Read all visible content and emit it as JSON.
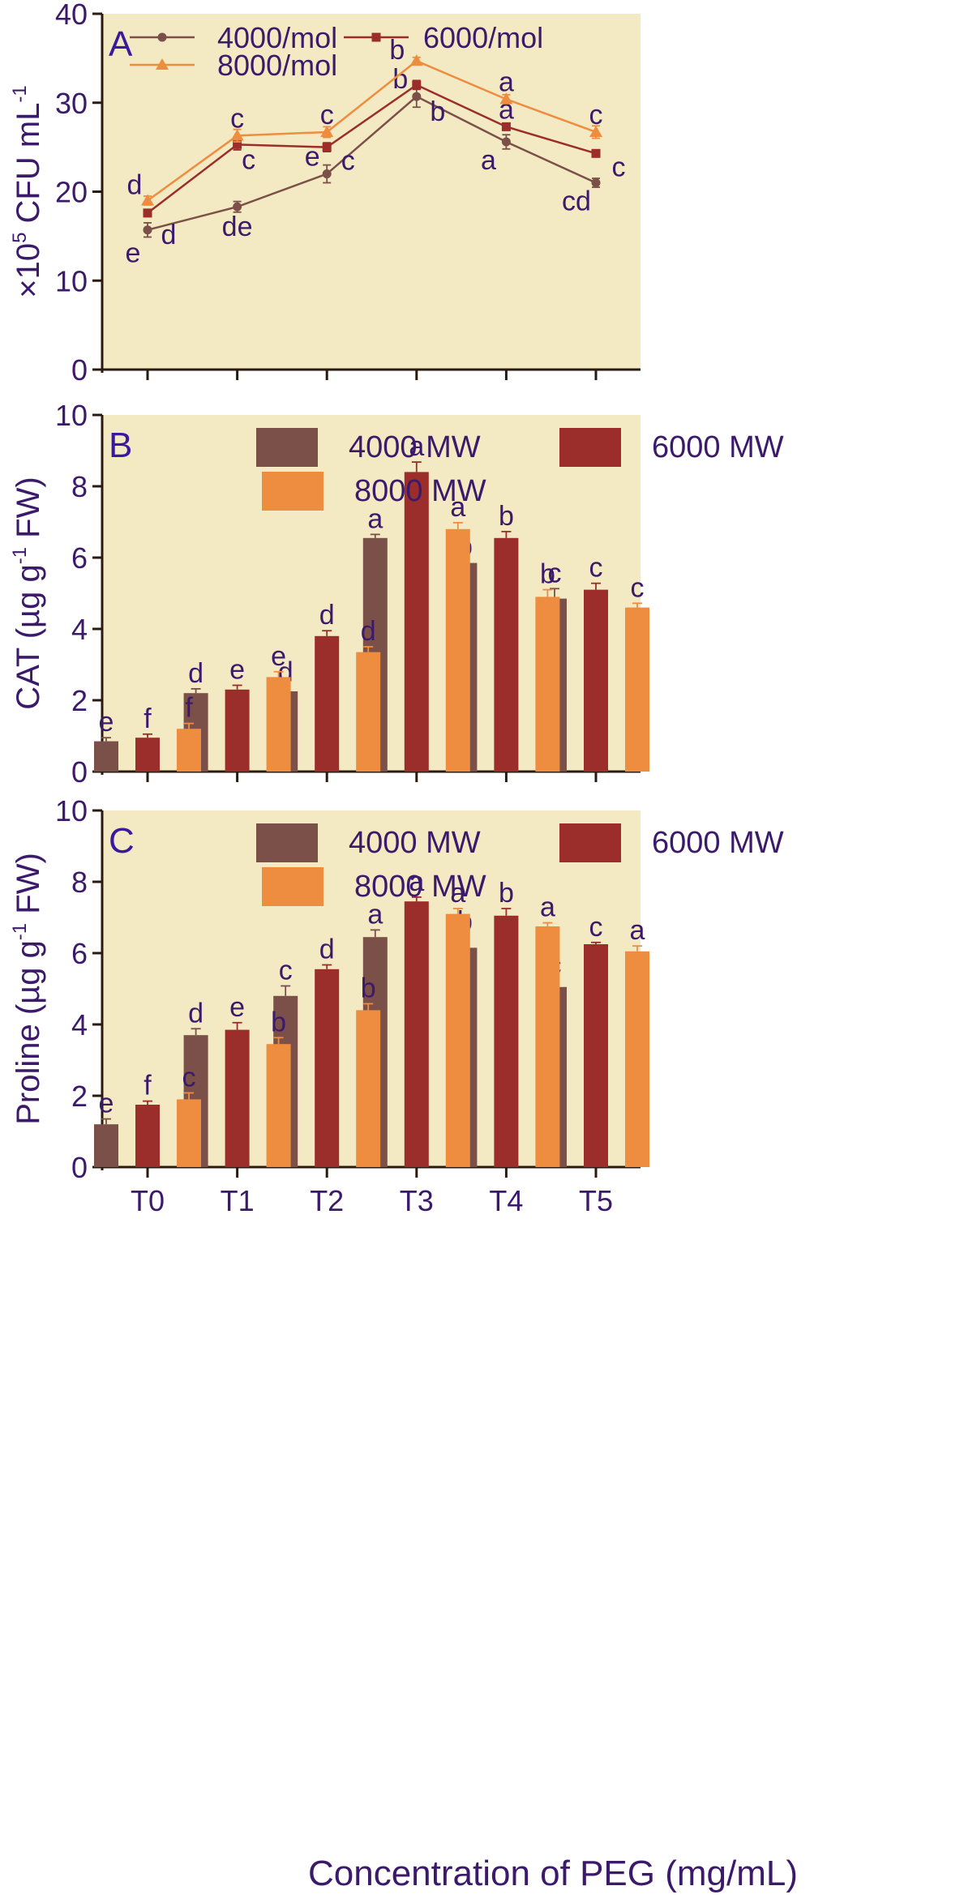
{
  "colors": {
    "panel_bg": "#F3E9C3",
    "axis": "#2b1a10",
    "text": "#3c1a6b",
    "c4000": "#7a5048",
    "c6000": "#9b2d2a",
    "c8000": "#ee8d3f"
  },
  "xlabel": "Concentration of PEG (mg/mL)",
  "chart_data": [
    {
      "id": "A",
      "type": "line",
      "panel_label": "A",
      "ylabel_prefix": "×10",
      "ylabel_sup": "5",
      "ylabel_main": " CFU mL",
      "ylabel_sup2": "-1",
      "ylim": [
        0,
        40
      ],
      "yticks": [
        "0",
        "10",
        "20",
        "30",
        "40"
      ],
      "categories": [
        "T0",
        "T1",
        "T2",
        "T3",
        "T4",
        "T5"
      ],
      "series": [
        {
          "name": "4000/mol",
          "color_key": "c4000",
          "marker": "circle",
          "values": [
            15.7,
            18.3,
            22.0,
            30.7,
            25.6,
            21.0
          ],
          "errors": [
            0.8,
            0.6,
            1.0,
            1.2,
            0.8,
            0.5
          ],
          "letters": [
            "e",
            "de",
            "e",
            "b",
            "a",
            "cd"
          ]
        },
        {
          "name": "6000/mol",
          "color_key": "c6000",
          "marker": "square",
          "values": [
            17.6,
            25.3,
            25.0,
            32.0,
            27.3,
            24.3
          ],
          "errors": [
            0.4,
            0.6,
            0.5,
            0.5,
            0.3,
            0.3
          ],
          "letters": [
            "d",
            "c",
            "c",
            "b",
            "a",
            "c"
          ]
        },
        {
          "name": "8000/mol",
          "color_key": "c8000",
          "marker": "triangle",
          "values": [
            19.0,
            26.3,
            26.7,
            34.7,
            30.4,
            26.7
          ],
          "errors": [
            0.5,
            0.7,
            0.6,
            0.4,
            0.5,
            0.7
          ],
          "letters": [
            "d",
            "c",
            "c",
            "b",
            "a",
            "c"
          ]
        }
      ]
    },
    {
      "id": "B",
      "type": "bar",
      "panel_label": "B",
      "ylabel_main": "CAT (µg g",
      "ylabel_sup": "-1",
      "ylabel_tail": " FW)",
      "ylim": [
        0,
        10
      ],
      "yticks": [
        "0",
        "2",
        "4",
        "6",
        "8",
        "10"
      ],
      "categories": [
        "T0",
        "T1",
        "T2",
        "T3",
        "T4",
        "T5"
      ],
      "series": [
        {
          "name": "4000 MW",
          "color_key": "c4000",
          "values": [
            0.85,
            2.2,
            2.25,
            6.55,
            5.85,
            4.85
          ],
          "errors": [
            0.1,
            0.12,
            0.1,
            0.1,
            0.03,
            0.28
          ],
          "letters": [
            "e",
            "d",
            "d",
            "a",
            "b",
            "c"
          ]
        },
        {
          "name": "6000 MW",
          "color_key": "c6000",
          "values": [
            0.95,
            2.3,
            3.8,
            8.4,
            6.55,
            5.1
          ],
          "errors": [
            0.1,
            0.12,
            0.15,
            0.28,
            0.18,
            0.18
          ],
          "letters": [
            "f",
            "e",
            "d",
            "a",
            "b",
            "c"
          ]
        },
        {
          "name": "8000 MW",
          "color_key": "c8000",
          "values": [
            1.2,
            2.65,
            3.35,
            6.8,
            4.9,
            4.6
          ],
          "errors": [
            0.15,
            0.15,
            0.15,
            0.18,
            0.2,
            0.12
          ],
          "letters": [
            "f",
            "e",
            "d",
            "a",
            "b",
            "c"
          ]
        }
      ]
    },
    {
      "id": "C",
      "type": "bar",
      "panel_label": "C",
      "ylabel_main": "Proline (µg g",
      "ylabel_sup": "-1",
      "ylabel_tail": " FW)",
      "ylim": [
        0,
        10
      ],
      "yticks": [
        "0",
        "2",
        "4",
        "6",
        "8",
        "10"
      ],
      "categories": [
        "T0",
        "T1",
        "T2",
        "T3",
        "T4",
        "T5"
      ],
      "series": [
        {
          "name": "4000 MW",
          "color_key": "c4000",
          "values": [
            1.2,
            3.7,
            4.8,
            6.45,
            6.15,
            5.05
          ],
          "errors": [
            0.15,
            0.18,
            0.28,
            0.2,
            0.3,
            0.18
          ],
          "letters": [
            "e",
            "d",
            "c",
            "a",
            "b",
            "c"
          ]
        },
        {
          "name": "6000 MW",
          "color_key": "c6000",
          "values": [
            1.75,
            3.85,
            5.55,
            7.45,
            7.05,
            6.25
          ],
          "errors": [
            0.1,
            0.2,
            0.12,
            0.12,
            0.2,
            0.05
          ],
          "letters": [
            "f",
            "e",
            "d",
            "a",
            "b",
            "c"
          ]
        },
        {
          "name": "8000 MW",
          "color_key": "c8000",
          "values": [
            1.9,
            3.45,
            4.4,
            7.1,
            6.75,
            6.05
          ],
          "errors": [
            0.18,
            0.18,
            0.18,
            0.15,
            0.1,
            0.15
          ],
          "letters": [
            "c",
            "b",
            "b",
            "a",
            "a",
            "a"
          ]
        }
      ]
    }
  ]
}
